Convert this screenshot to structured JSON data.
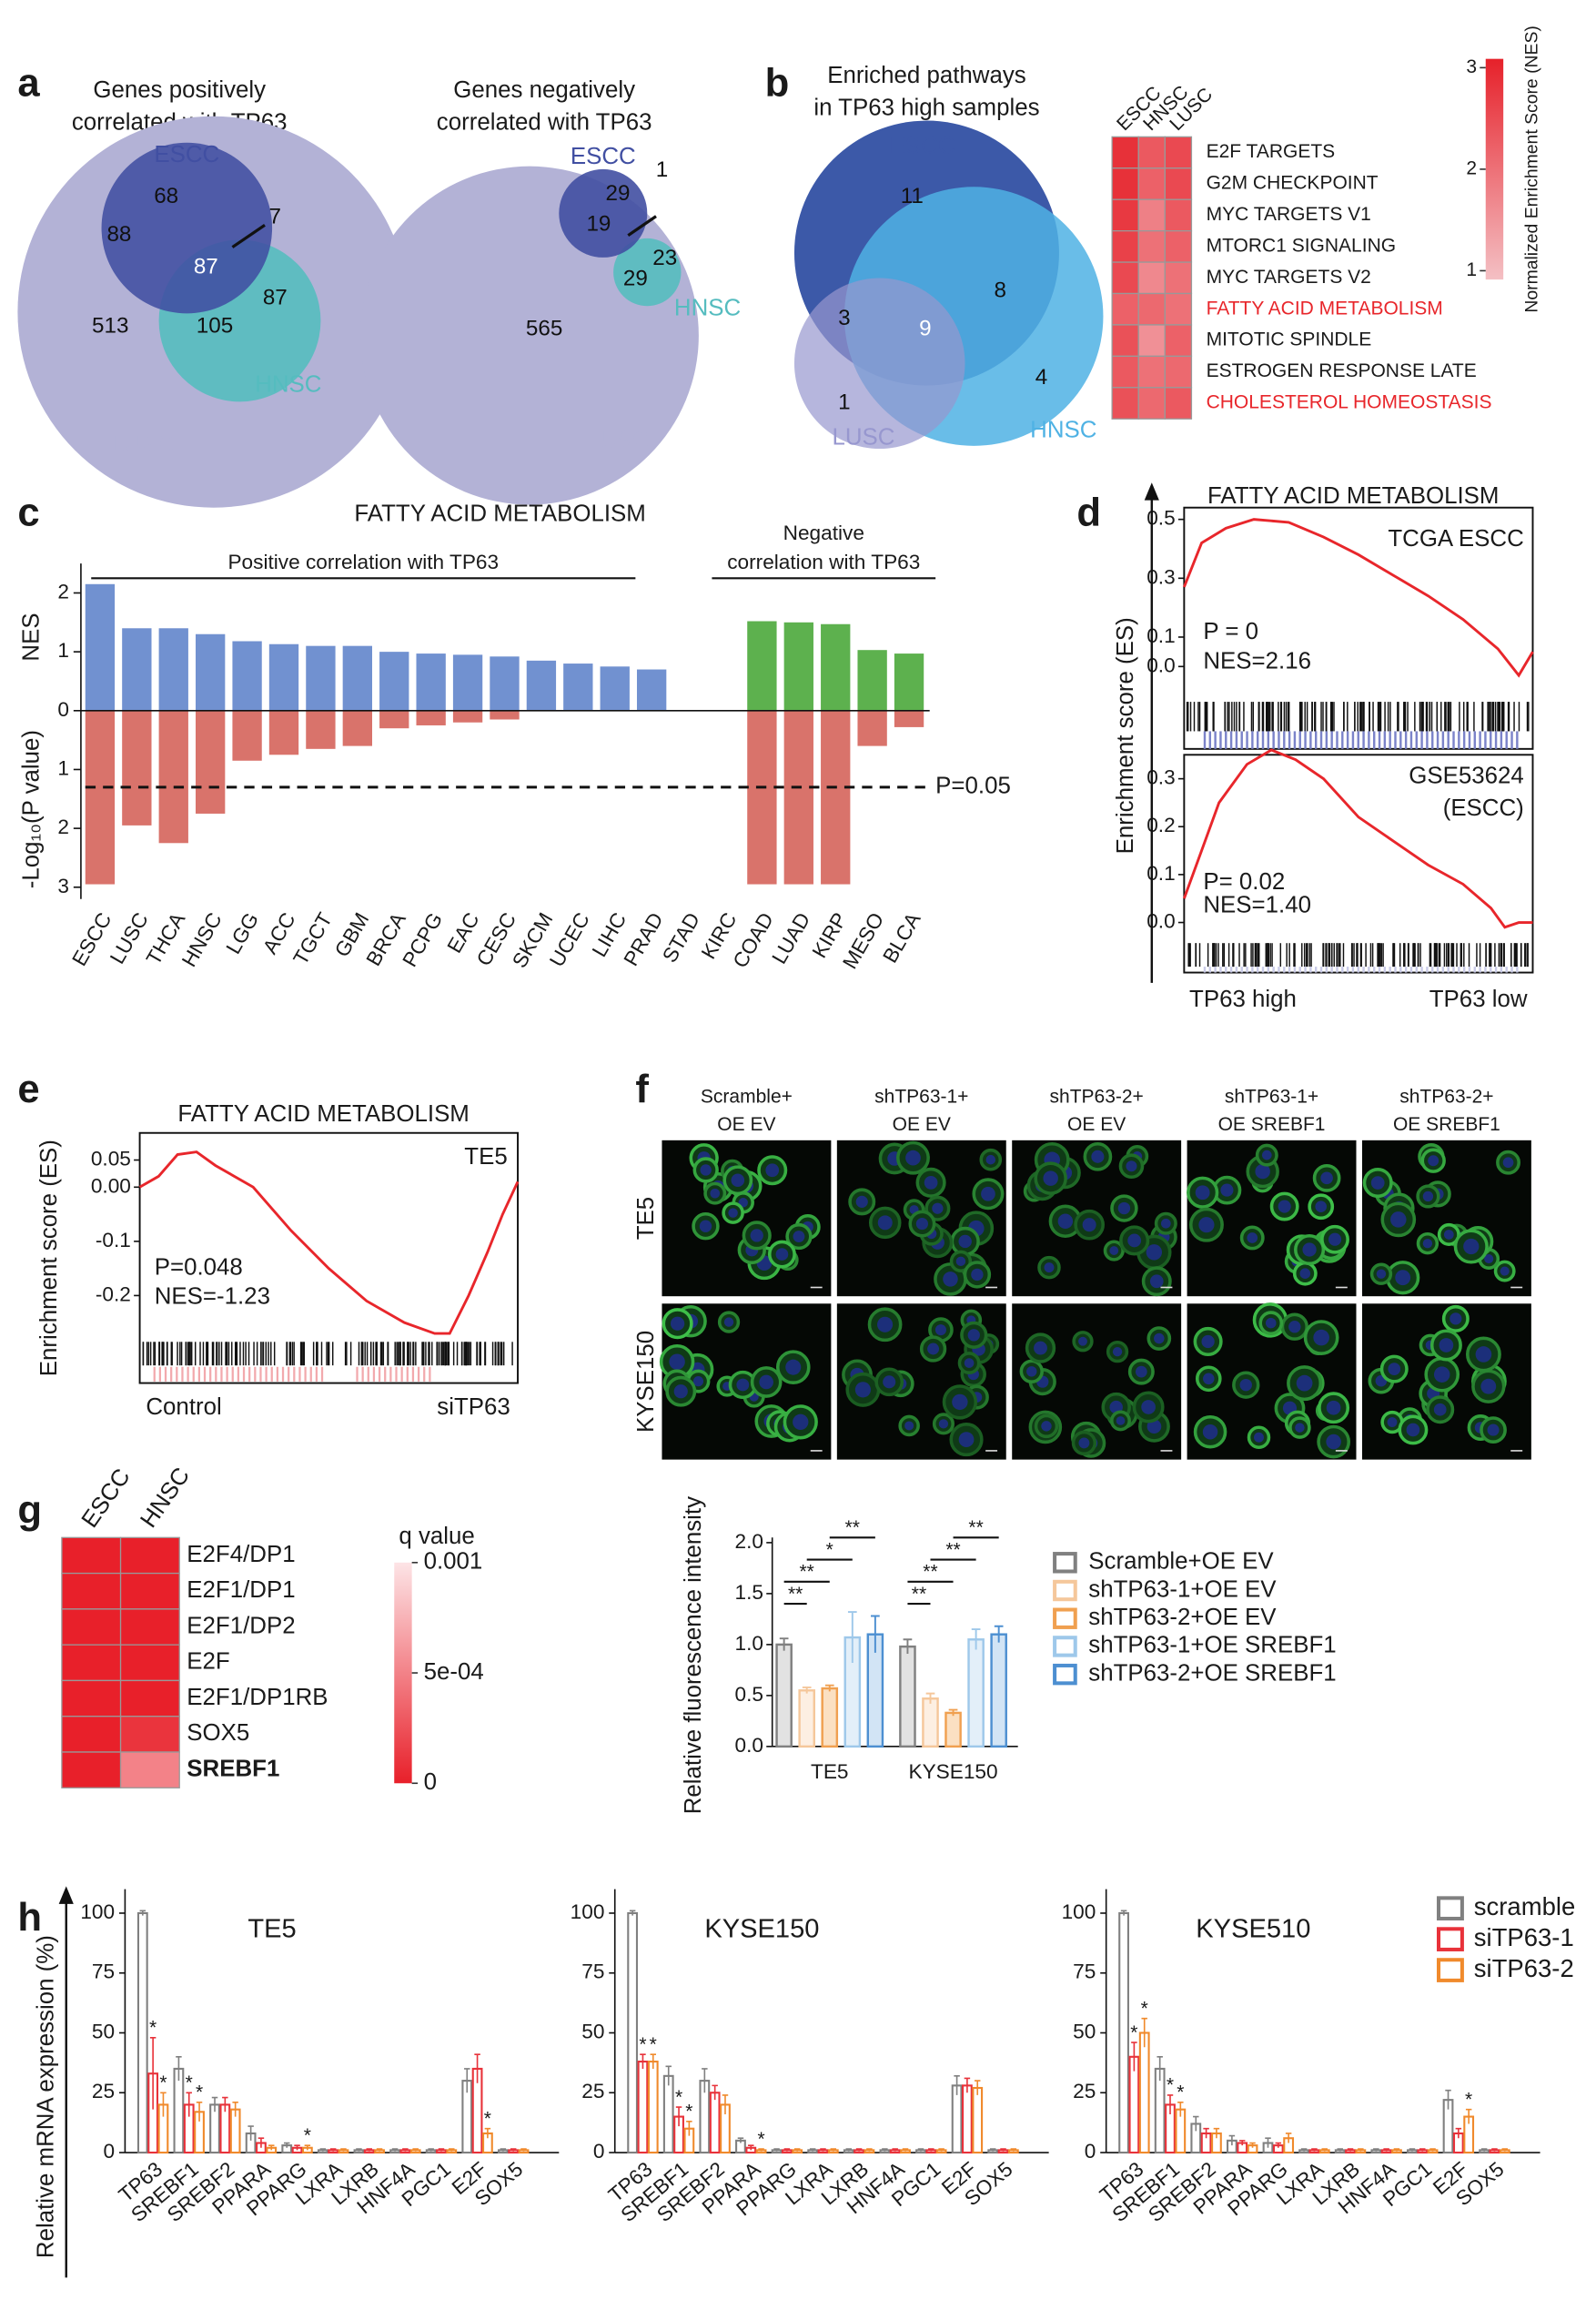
{
  "panel_letters": [
    "a",
    "b",
    "c",
    "d",
    "e",
    "f",
    "g",
    "h"
  ],
  "venns": [
    {
      "title": [
        "Genes positively",
        "correlated with TP63"
      ],
      "sets": [
        {
          "name": "ESCC",
          "color": "#414fa2"
        },
        {
          "name": "HNSC",
          "color": "#55bcbf"
        },
        {
          "name": "LUSC",
          "color": "#b3b2d6"
        }
      ],
      "counts": [
        68,
        88,
        87,
        7,
        105,
        87,
        513
      ]
    },
    {
      "title": [
        "Genes negatively",
        "correlated with TP63"
      ],
      "sets": [
        {
          "name": "ESCC",
          "color": "#414fa2"
        },
        {
          "name": "HNSC",
          "color": "#55bcbf"
        },
        {
          "name": "LUSC",
          "color": "#b3b2d6"
        }
      ],
      "counts": [
        29,
        19,
        1,
        29,
        23,
        565
      ]
    },
    {
      "title": [
        "Enriched pathways",
        "in TP63 high samples"
      ],
      "sets": [
        {
          "name": "ESCC",
          "color": "#3c59a8"
        },
        {
          "name": "HNSC",
          "color": "#4fb2e4"
        },
        {
          "name": "LUSC",
          "color": "#9797cf"
        }
      ],
      "counts": [
        11,
        3,
        9,
        8,
        4,
        1
      ]
    }
  ],
  "heatmap_b": {
    "type": "heatmap",
    "columns": [
      "ESCC",
      "HNSC",
      "LUSC"
    ],
    "rows": [
      {
        "label": "E2F TARGETS",
        "color": "#1a1a1a"
      },
      {
        "label": "G2M CHECKPOINT",
        "color": "#1a1a1a"
      },
      {
        "label": "MYC TARGETS V1",
        "color": "#1a1a1a"
      },
      {
        "label": "MTORC1 SIGNALING",
        "color": "#1a1a1a"
      },
      {
        "label": "MYC TARGETS V2",
        "color": "#1a1a1a"
      },
      {
        "label": "FATTY ACID METABOLISM",
        "color": "#e8262b"
      },
      {
        "label": "MITOTIC SPINDLE",
        "color": "#1a1a1a"
      },
      {
        "label": "ESTROGEN RESPONSE LATE",
        "color": "#1a1a1a"
      },
      {
        "label": "CHOLESTEROL HOMEOSTASIS",
        "color": "#e8262b"
      }
    ],
    "values": [
      [
        2.8,
        2.3,
        2.5
      ],
      [
        2.8,
        2.2,
        2.5
      ],
      [
        2.7,
        1.8,
        2.3
      ],
      [
        2.6,
        2.0,
        2.2
      ],
      [
        2.5,
        1.7,
        2.0
      ],
      [
        2.2,
        2.1,
        2.0
      ],
      [
        2.4,
        1.6,
        2.2
      ],
      [
        2.3,
        2.0,
        2.1
      ],
      [
        2.4,
        2.1,
        2.3
      ]
    ],
    "colorbar": {
      "label": "Normalized Enrichment Score (NES)",
      "lim": [
        1,
        3
      ],
      "ticks": [
        1,
        2,
        3
      ],
      "colors": [
        "#f4c0c4",
        "#e6212a"
      ]
    }
  },
  "chart_c": {
    "type": "bar",
    "title": "FATTY ACID METABOLISM",
    "groups": [
      [
        "Positive correlation with TP63"
      ],
      [
        "Negative",
        "correlation with TP63"
      ]
    ],
    "categories": [
      "ESCC",
      "LUSC",
      "THCA",
      "HNSC",
      "LGG",
      "ACC",
      "TGCT",
      "GBM",
      "BRCA",
      "PCPG",
      "EAC",
      "CESC",
      "SKCM",
      "UCEC",
      "LIHC",
      "PRAD",
      "STAD",
      "KIRC",
      "COAD",
      "LUAD",
      "KIRP",
      "MESO",
      "BLCA"
    ],
    "series": [
      {
        "name": "NES",
        "values": [
          2.15,
          1.4,
          1.4,
          1.3,
          1.18,
          1.13,
          1.1,
          1.1,
          1.0,
          0.97,
          0.95,
          0.92,
          0.85,
          0.8,
          0.75,
          0.7,
          null,
          null,
          1.52,
          1.5,
          1.47,
          1.03,
          0.97
        ],
        "colors": [
          "#7191d0",
          "#7191d0",
          "#7191d0",
          "#7191d0",
          "#7191d0",
          "#7191d0",
          "#7191d0",
          "#7191d0",
          "#7191d0",
          "#7191d0",
          "#7191d0",
          "#7191d0",
          "#7191d0",
          "#7191d0",
          "#7191d0",
          "#7191d0",
          null,
          null,
          "#5db14e",
          "#5db14e",
          "#5db14e",
          "#5db14e",
          "#5db14e"
        ],
        "ylim": [
          0,
          2.5
        ],
        "yticks": [
          0,
          1,
          2
        ]
      },
      {
        "name": "-Log₁₀(P value)",
        "color": "#d9736b",
        "values": [
          2.95,
          1.95,
          2.25,
          1.75,
          0.85,
          0.75,
          0.65,
          0.6,
          0.3,
          0.25,
          0.2,
          0.15,
          0,
          0,
          0,
          0,
          null,
          null,
          2.95,
          2.95,
          2.95,
          0.6,
          0.28
        ],
        "ylim": [
          0,
          3.2
        ],
        "yticks": [
          1,
          2,
          3
        ]
      }
    ],
    "threshold": {
      "value": 1.3,
      "label": "P=0.05"
    }
  },
  "chart_d": {
    "type": "line",
    "title": "FATTY ACID METABOLISM",
    "ylabel": "Enrichment score (ES)",
    "xlabels": [
      "TP63 high",
      "TP63 low"
    ],
    "color": "#e8262b",
    "xlim": [
      0,
      1
    ],
    "plots": [
      {
        "label": [
          "TCGA ESCC"
        ],
        "stats": [
          "P = 0",
          "NES=2.16"
        ],
        "strip_color": "#7b83c9",
        "x": [
          0,
          0.05,
          0.12,
          0.2,
          0.3,
          0.4,
          0.5,
          0.6,
          0.7,
          0.8,
          0.9,
          0.96,
          1
        ],
        "values": [
          0.27,
          0.42,
          0.47,
          0.5,
          0.49,
          0.44,
          0.38,
          0.31,
          0.24,
          0.16,
          0.06,
          -0.03,
          0.05
        ],
        "ylim": [
          -0.11,
          0.54
        ],
        "yticks": [
          {
            "value": 0,
            "label": "0.0"
          },
          0.1,
          0.3,
          0.5
        ]
      },
      {
        "label": [
          "GSE53624",
          "(ESCC)"
        ],
        "stats": [
          "P= 0.02",
          "NES=1.40"
        ],
        "strip_color": "#c9cbe8",
        "x": [
          0,
          0.05,
          0.1,
          0.18,
          0.25,
          0.32,
          0.4,
          0.5,
          0.6,
          0.7,
          0.8,
          0.88,
          0.92,
          0.96,
          1
        ],
        "values": [
          0.05,
          0.15,
          0.25,
          0.33,
          0.36,
          0.34,
          0.3,
          0.22,
          0.17,
          0.12,
          0.08,
          0.03,
          -0.01,
          0.0,
          0.0
        ],
        "ylim": [
          -0.04,
          0.35
        ],
        "yticks": [
          {
            "value": 0,
            "label": "0.0"
          },
          0.1,
          0.2,
          0.3
        ]
      }
    ]
  },
  "chart_e": {
    "type": "line",
    "title": "FATTY ACID METABOLISM",
    "ylabel": "Enrichment score (ES)",
    "label": "TE5",
    "stats": [
      "P=0.048",
      "NES=-1.23"
    ],
    "xlabels": [
      "Control",
      "siTP63"
    ],
    "color": "#e8262b",
    "strip_color": "#f2a9ad",
    "xlim": [
      0,
      1
    ],
    "x": [
      0,
      0.05,
      0.1,
      0.15,
      0.2,
      0.3,
      0.4,
      0.5,
      0.6,
      0.7,
      0.78,
      0.82,
      0.87,
      0.92,
      0.96,
      1
    ],
    "values": [
      0.0,
      0.02,
      0.06,
      0.065,
      0.04,
      0.0,
      -0.08,
      -0.15,
      -0.21,
      -0.25,
      -0.27,
      -0.27,
      -0.2,
      -0.12,
      -0.05,
      0.01
    ],
    "ylim": [
      -0.28,
      0.1
    ],
    "yticks": [
      -0.2,
      -0.1,
      {
        "value": 0,
        "label": "0.00"
      },
      0.05
    ]
  },
  "images_f": {
    "columns": [
      [
        "Scramble+",
        "OE EV"
      ],
      [
        "shTP63-1+",
        "OE EV"
      ],
      [
        "shTP63-2+",
        "OE EV"
      ],
      [
        "shTP63-1+",
        "OE SREBF1"
      ],
      [
        "shTP63-2+",
        "OE SREBF1"
      ]
    ],
    "rows": [
      "TE5",
      "KYSE150"
    ]
  },
  "chart_f": {
    "type": "bar",
    "ylabel": "Relative fluorescence intensity",
    "categories": [
      "TE5",
      "KYSE150"
    ],
    "series": [
      {
        "name": "Scramble+OE EV",
        "color": "#808080",
        "fill": "#e2e2e2",
        "values": [
          1.0,
          0.98
        ],
        "errors": [
          0.06,
          0.07
        ]
      },
      {
        "name": "shTP63-1+OE EV",
        "color": "#f5c79b",
        "fill": "#fdefe2",
        "values": [
          0.55,
          0.47
        ],
        "errors": [
          0.03,
          0.05
        ]
      },
      {
        "name": "shTP63-2+OE EV",
        "color": "#f0a050",
        "fill": "#fbe0c2",
        "values": [
          0.57,
          0.33
        ],
        "errors": [
          0.03,
          0.03
        ]
      },
      {
        "name": "shTP63-1+OE SREBF1",
        "color": "#9ec8ea",
        "fill": "#e3eff9",
        "values": [
          1.07,
          1.05
        ],
        "errors": [
          0.25,
          0.1
        ]
      },
      {
        "name": "shTP63-2+OE SREBF1",
        "color": "#4d8fd1",
        "fill": "#d2e4f5",
        "values": [
          1.1,
          1.1
        ],
        "errors": [
          0.18,
          0.08
        ]
      }
    ],
    "significance": [
      [
        {
          "between": [
            "Scramble+OE EV",
            "shTP63-1+OE EV"
          ],
          "label": "**"
        },
        {
          "between": [
            "Scramble+OE EV",
            "shTP63-2+OE EV"
          ],
          "label": "**"
        },
        {
          "between": [
            "shTP63-1+OE EV",
            "shTP63-1+OE SREBF1"
          ],
          "label": "*"
        },
        {
          "between": [
            "shTP63-2+OE EV",
            "shTP63-2+OE SREBF1"
          ],
          "label": "**"
        }
      ],
      [
        {
          "between": [
            "Scramble+OE EV",
            "shTP63-1+OE EV"
          ],
          "label": "**"
        },
        {
          "between": [
            "Scramble+OE EV",
            "shTP63-2+OE EV"
          ],
          "label": "**"
        },
        {
          "between": [
            "shTP63-1+OE EV",
            "shTP63-1+OE SREBF1"
          ],
          "label": "**"
        },
        {
          "between": [
            "shTP63-2+OE EV",
            "shTP63-2+OE SREBF1"
          ],
          "label": "**"
        }
      ]
    ],
    "ylim": [
      0,
      2.05
    ],
    "yticks": [
      {
        "value": 0,
        "label": "0.0"
      },
      0.5,
      {
        "value": 1,
        "label": "1.0"
      },
      1.5,
      {
        "value": 2,
        "label": "2.0"
      }
    ]
  },
  "heatmap_g": {
    "type": "heatmap",
    "columns": [
      "ESCC",
      "HNSC"
    ],
    "rows": [
      "E2F4/DP1",
      "E2F1/DP1",
      "E2F1/DP2",
      "E2F",
      "E2F1/DP1RB",
      "SOX5",
      "SREBF1"
    ],
    "bold_row": "SREBF1",
    "values": [
      [
        0,
        0
      ],
      [
        0,
        0
      ],
      [
        0,
        0
      ],
      [
        0,
        0
      ],
      [
        0,
        0
      ],
      [
        0,
        0.0001
      ],
      [
        0,
        0.0005
      ]
    ],
    "colorbar": {
      "label": "q value",
      "lim": [
        0,
        0.001
      ],
      "ticks": [
        0,
        {
          "value": 0.0005,
          "label": "5e-04"
        },
        0.001
      ],
      "colors": [
        "#e8202a",
        "#fde4e6"
      ]
    }
  },
  "chart_h": {
    "type": "bar",
    "ylabel": "Relative mRNA expression (%)",
    "categories": [
      "TP63",
      "SREBF1",
      "SREBF2",
      "PPARA",
      "PPARG",
      "LXRA",
      "LXRB",
      "HNF4A",
      "PGC1",
      "E2F",
      "SOX5"
    ],
    "series": [
      {
        "name": "scramble",
        "color": "#808080"
      },
      {
        "name": "siTP63-1",
        "color": "#e8323a"
      },
      {
        "name": "siTP63-2",
        "color": "#f08a2c"
      }
    ],
    "ylim": [
      0,
      110
    ],
    "yticks": [
      0,
      25,
      50,
      75,
      100
    ],
    "panels": [
      {
        "title": "TE5",
        "values": [
          [
            100,
            35,
            20,
            8,
            3,
            1,
            1,
            1,
            1,
            30,
            1
          ],
          [
            33,
            20,
            20,
            4,
            2,
            1,
            1,
            1,
            1,
            35,
            1
          ],
          [
            20,
            17,
            18,
            2,
            2,
            1,
            1,
            1,
            1,
            8,
            1
          ]
        ],
        "errors": [
          [
            1,
            5,
            3,
            3,
            1,
            0.5,
            0.5,
            0.5,
            0.5,
            5,
            0.5
          ],
          [
            15,
            5,
            3,
            2,
            1,
            0.5,
            0.5,
            0.5,
            0.5,
            6,
            0.5
          ],
          [
            5,
            4,
            3,
            1,
            1,
            0.5,
            0.5,
            0.5,
            0.5,
            2,
            0.5
          ]
        ],
        "stars": [
          [
            null,
            null,
            null,
            null,
            null,
            null,
            null,
            null,
            null,
            null,
            null
          ],
          [
            "*",
            "*",
            null,
            null,
            null,
            null,
            null,
            null,
            null,
            null,
            null
          ],
          [
            "*",
            "*",
            null,
            null,
            "*",
            null,
            null,
            null,
            null,
            "*",
            null
          ]
        ]
      },
      {
        "title": "KYSE150",
        "values": [
          [
            100,
            32,
            30,
            5,
            1,
            1,
            1,
            1,
            1,
            28,
            1
          ],
          [
            38,
            15,
            25,
            2,
            1,
            1,
            1,
            1,
            1,
            28,
            1
          ],
          [
            38,
            10,
            20,
            1,
            1,
            1,
            1,
            1,
            1,
            27,
            1
          ]
        ],
        "errors": [
          [
            1,
            4,
            5,
            1,
            0.5,
            0.5,
            0.5,
            0.5,
            0.5,
            4,
            0.5
          ],
          [
            3,
            4,
            3,
            1,
            0.5,
            0.5,
            0.5,
            0.5,
            0.5,
            3,
            0.5
          ],
          [
            3,
            3,
            4,
            0.5,
            0.5,
            0.5,
            0.5,
            0.5,
            0.5,
            3,
            0.5
          ]
        ],
        "stars": [
          [
            null,
            null,
            null,
            null,
            null,
            null,
            null,
            null,
            null,
            null,
            null
          ],
          [
            "*",
            "*",
            null,
            null,
            null,
            null,
            null,
            null,
            null,
            null,
            null
          ],
          [
            "*",
            "*",
            null,
            "*",
            null,
            null,
            null,
            null,
            null,
            null,
            null
          ]
        ]
      },
      {
        "title": "KYSE510",
        "values": [
          [
            100,
            35,
            12,
            5,
            4,
            1,
            1,
            1,
            1,
            22,
            1
          ],
          [
            40,
            20,
            8,
            4,
            3,
            1,
            1,
            1,
            1,
            8,
            1
          ],
          [
            50,
            18,
            8,
            3,
            6,
            1,
            1,
            1,
            1,
            15,
            1
          ]
        ],
        "errors": [
          [
            1,
            5,
            3,
            2,
            2,
            0.5,
            0.5,
            0.5,
            0.5,
            4,
            0.5
          ],
          [
            6,
            4,
            2,
            1,
            1,
            0.5,
            0.5,
            0.5,
            0.5,
            2,
            0.5
          ],
          [
            6,
            3,
            2,
            1,
            2,
            0.5,
            0.5,
            0.5,
            0.5,
            3,
            0.5
          ]
        ],
        "stars": [
          [
            null,
            null,
            null,
            null,
            null,
            null,
            null,
            null,
            null,
            null,
            null
          ],
          [
            "*",
            "*",
            null,
            null,
            null,
            null,
            null,
            null,
            null,
            null,
            null
          ],
          [
            "*",
            "*",
            null,
            null,
            null,
            null,
            null,
            null,
            null,
            "*",
            null
          ]
        ]
      }
    ]
  }
}
